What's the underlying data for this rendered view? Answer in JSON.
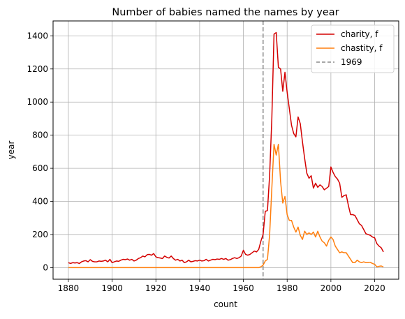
{
  "chart_data": {
    "type": "line",
    "title": "Number of babies named the names by year",
    "xlabel": "count",
    "ylabel": "year",
    "xlim": [
      1873,
      2031
    ],
    "ylim": [
      -70,
      1490
    ],
    "xticks": [
      1880,
      1900,
      1920,
      1940,
      1960,
      1980,
      2000,
      2020
    ],
    "yticks": [
      0,
      200,
      400,
      600,
      800,
      1000,
      1200,
      1400
    ],
    "grid": true,
    "legend_position": "top-right",
    "vline": {
      "x": 1969,
      "label": "1969",
      "color": "#8c8c8c"
    },
    "series": [
      {
        "name": "charity, f",
        "color": "#d40000",
        "points": [
          [
            1880,
            30
          ],
          [
            1881,
            25
          ],
          [
            1882,
            30
          ],
          [
            1883,
            28
          ],
          [
            1884,
            30
          ],
          [
            1885,
            25
          ],
          [
            1886,
            35
          ],
          [
            1887,
            40
          ],
          [
            1888,
            42
          ],
          [
            1889,
            35
          ],
          [
            1890,
            48
          ],
          [
            1891,
            38
          ],
          [
            1892,
            35
          ],
          [
            1893,
            35
          ],
          [
            1894,
            40
          ],
          [
            1895,
            38
          ],
          [
            1896,
            40
          ],
          [
            1897,
            45
          ],
          [
            1898,
            35
          ],
          [
            1899,
            50
          ],
          [
            1900,
            30
          ],
          [
            1901,
            35
          ],
          [
            1902,
            40
          ],
          [
            1903,
            38
          ],
          [
            1904,
            45
          ],
          [
            1905,
            50
          ],
          [
            1906,
            48
          ],
          [
            1907,
            52
          ],
          [
            1908,
            45
          ],
          [
            1909,
            50
          ],
          [
            1910,
            40
          ],
          [
            1911,
            45
          ],
          [
            1912,
            55
          ],
          [
            1913,
            60
          ],
          [
            1914,
            70
          ],
          [
            1915,
            65
          ],
          [
            1916,
            78
          ],
          [
            1917,
            80
          ],
          [
            1918,
            75
          ],
          [
            1919,
            85
          ],
          [
            1920,
            65
          ],
          [
            1921,
            60
          ],
          [
            1922,
            58
          ],
          [
            1923,
            55
          ],
          [
            1924,
            70
          ],
          [
            1925,
            62
          ],
          [
            1926,
            58
          ],
          [
            1927,
            70
          ],
          [
            1928,
            55
          ],
          [
            1929,
            45
          ],
          [
            1930,
            50
          ],
          [
            1931,
            40
          ],
          [
            1932,
            45
          ],
          [
            1933,
            30
          ],
          [
            1934,
            35
          ],
          [
            1935,
            45
          ],
          [
            1936,
            35
          ],
          [
            1937,
            38
          ],
          [
            1938,
            42
          ],
          [
            1939,
            40
          ],
          [
            1940,
            45
          ],
          [
            1941,
            40
          ],
          [
            1942,
            42
          ],
          [
            1943,
            50
          ],
          [
            1944,
            40
          ],
          [
            1945,
            45
          ],
          [
            1946,
            50
          ],
          [
            1947,
            48
          ],
          [
            1948,
            52
          ],
          [
            1949,
            50
          ],
          [
            1950,
            55
          ],
          [
            1951,
            50
          ],
          [
            1952,
            55
          ],
          [
            1953,
            45
          ],
          [
            1954,
            48
          ],
          [
            1955,
            55
          ],
          [
            1956,
            60
          ],
          [
            1957,
            55
          ],
          [
            1958,
            60
          ],
          [
            1959,
            70
          ],
          [
            1960,
            105
          ],
          [
            1961,
            80
          ],
          [
            1962,
            75
          ],
          [
            1963,
            80
          ],
          [
            1964,
            90
          ],
          [
            1965,
            100
          ],
          [
            1966,
            95
          ],
          [
            1967,
            110
          ],
          [
            1968,
            160
          ],
          [
            1969,
            200
          ],
          [
            1970,
            340
          ],
          [
            1971,
            345
          ],
          [
            1972,
            560
          ],
          [
            1973,
            900
          ],
          [
            1974,
            1410
          ],
          [
            1975,
            1420
          ],
          [
            1976,
            1210
          ],
          [
            1977,
            1200
          ],
          [
            1978,
            1065
          ],
          [
            1979,
            1180
          ],
          [
            1980,
            1060
          ],
          [
            1981,
            960
          ],
          [
            1982,
            860
          ],
          [
            1983,
            810
          ],
          [
            1984,
            790
          ],
          [
            1985,
            910
          ],
          [
            1986,
            870
          ],
          [
            1987,
            760
          ],
          [
            1988,
            660
          ],
          [
            1989,
            570
          ],
          [
            1990,
            540
          ],
          [
            1991,
            555
          ],
          [
            1992,
            480
          ],
          [
            1993,
            510
          ],
          [
            1994,
            485
          ],
          [
            1995,
            500
          ],
          [
            1996,
            490
          ],
          [
            1997,
            470
          ],
          [
            1998,
            480
          ],
          [
            1999,
            490
          ],
          [
            2000,
            608
          ],
          [
            2001,
            575
          ],
          [
            2002,
            550
          ],
          [
            2003,
            535
          ],
          [
            2004,
            510
          ],
          [
            2005,
            425
          ],
          [
            2006,
            435
          ],
          [
            2007,
            440
          ],
          [
            2008,
            375
          ],
          [
            2009,
            320
          ],
          [
            2010,
            320
          ],
          [
            2011,
            315
          ],
          [
            2012,
            290
          ],
          [
            2013,
            265
          ],
          [
            2014,
            255
          ],
          [
            2015,
            230
          ],
          [
            2016,
            205
          ],
          [
            2017,
            200
          ],
          [
            2018,
            195
          ],
          [
            2019,
            185
          ],
          [
            2020,
            180
          ],
          [
            2021,
            145
          ],
          [
            2022,
            130
          ],
          [
            2023,
            120
          ],
          [
            2024,
            95
          ]
        ]
      },
      {
        "name": "chastity, f",
        "color": "#ff7f0e",
        "points": [
          [
            1880,
            0
          ],
          [
            1890,
            0
          ],
          [
            1900,
            0
          ],
          [
            1910,
            0
          ],
          [
            1920,
            0
          ],
          [
            1930,
            0
          ],
          [
            1940,
            0
          ],
          [
            1950,
            0
          ],
          [
            1960,
            0
          ],
          [
            1967,
            0
          ],
          [
            1968,
            5
          ],
          [
            1969,
            15
          ],
          [
            1970,
            40
          ],
          [
            1971,
            50
          ],
          [
            1972,
            200
          ],
          [
            1973,
            480
          ],
          [
            1974,
            745
          ],
          [
            1975,
            680
          ],
          [
            1976,
            745
          ],
          [
            1977,
            520
          ],
          [
            1978,
            390
          ],
          [
            1979,
            430
          ],
          [
            1980,
            320
          ],
          [
            1981,
            285
          ],
          [
            1982,
            285
          ],
          [
            1983,
            245
          ],
          [
            1984,
            215
          ],
          [
            1985,
            245
          ],
          [
            1986,
            195
          ],
          [
            1987,
            170
          ],
          [
            1988,
            220
          ],
          [
            1989,
            200
          ],
          [
            1990,
            210
          ],
          [
            1991,
            200
          ],
          [
            1992,
            215
          ],
          [
            1993,
            185
          ],
          [
            1994,
            220
          ],
          [
            1995,
            185
          ],
          [
            1996,
            160
          ],
          [
            1997,
            150
          ],
          [
            1998,
            130
          ],
          [
            1999,
            165
          ],
          [
            2000,
            185
          ],
          [
            2001,
            170
          ],
          [
            2002,
            130
          ],
          [
            2003,
            110
          ],
          [
            2004,
            90
          ],
          [
            2005,
            95
          ],
          [
            2006,
            90
          ],
          [
            2007,
            90
          ],
          [
            2008,
            70
          ],
          [
            2009,
            50
          ],
          [
            2010,
            30
          ],
          [
            2011,
            30
          ],
          [
            2012,
            45
          ],
          [
            2013,
            35
          ],
          [
            2014,
            30
          ],
          [
            2015,
            35
          ],
          [
            2016,
            30
          ],
          [
            2017,
            30
          ],
          [
            2018,
            32
          ],
          [
            2019,
            25
          ],
          [
            2020,
            20
          ],
          [
            2021,
            5
          ],
          [
            2022,
            8
          ],
          [
            2023,
            10
          ],
          [
            2024,
            5
          ]
        ]
      }
    ]
  }
}
